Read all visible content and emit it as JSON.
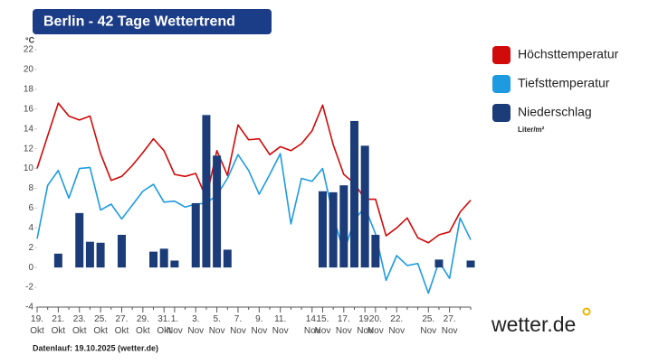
{
  "chart_data": {
    "type": "combo",
    "title": "Berlin - 42 Tage Wettertrend",
    "y_unit": "°C",
    "footer": "Datenlauf: 19.10.2025 (wetter.de)",
    "brand": "wetter.de",
    "categories": [
      "19. Okt",
      null,
      "21. Okt",
      null,
      "23. Okt",
      null,
      "25. Okt",
      null,
      "27. Okt",
      null,
      "29. Okt",
      null,
      "31. Okt",
      "1. Nov",
      null,
      "3. Nov",
      null,
      "5. Nov",
      null,
      "7. Nov",
      null,
      "9. Nov",
      null,
      "11. Nov",
      null,
      null,
      "14. Nov",
      "15. Nov",
      null,
      "17. Nov",
      null,
      "19. Nov",
      "20. Nov",
      null,
      "22. Nov",
      null,
      null,
      "25. Nov",
      null,
      "27. Nov",
      null,
      null
    ],
    "series": [
      {
        "name": "Niederschlag",
        "unit": "Liter/m²",
        "type": "bar",
        "color": "#1b3c78",
        "values": [
          0,
          0,
          1.4,
          0,
          5.5,
          2.6,
          2.5,
          0,
          3.3,
          0,
          0,
          1.6,
          1.9,
          0.7,
          0,
          6.5,
          15.4,
          11.3,
          1.8,
          0,
          0,
          0,
          0,
          0,
          0,
          0,
          0,
          7.7,
          7.6,
          8.3,
          14.8,
          12.3,
          3.3,
          0,
          0,
          0,
          0,
          0,
          0.8,
          0,
          0,
          0.7
        ]
      },
      {
        "name": "Höchsttemperatur",
        "type": "line",
        "color": "#d10a0a",
        "values": [
          10,
          13.3,
          16.6,
          15.3,
          14.9,
          15.3,
          11.5,
          8.8,
          9.2,
          10.3,
          11.6,
          13.0,
          11.8,
          9.4,
          9.2,
          9.5,
          7.0,
          11.8,
          9.3,
          14.4,
          12.9,
          13.0,
          11.4,
          12.2,
          11.8,
          12.5,
          13.8,
          16.4,
          12.4,
          9.4,
          8.5,
          6.9,
          6.9,
          3.2,
          4.0,
          5.0,
          3.0,
          2.5,
          3.3,
          3.6,
          5.6,
          6.8
        ]
      },
      {
        "name": "Tiefsttemperatur",
        "type": "line",
        "color": "#1e9be0",
        "values": [
          2.9,
          8.3,
          9.8,
          7.0,
          10.0,
          10.1,
          5.8,
          6.4,
          4.9,
          6.3,
          7.7,
          8.4,
          6.6,
          6.7,
          6.1,
          6.4,
          6.5,
          7.3,
          9.0,
          11.4,
          9.8,
          7.4,
          9.4,
          11.5,
          4.4,
          9.0,
          8.7,
          10.0,
          5.2,
          1.5,
          4.8,
          6.1,
          3.4,
          -1.3,
          1.2,
          0.2,
          0.4,
          -2.6,
          0.6,
          -1.1,
          5.0,
          2.8
        ]
      }
    ],
    "ylim": [
      -4,
      22
    ],
    "yticks": [
      -4,
      -2,
      0,
      2,
      4,
      6,
      8,
      10,
      12,
      14,
      16,
      18,
      20,
      22
    ],
    "grid": false
  }
}
